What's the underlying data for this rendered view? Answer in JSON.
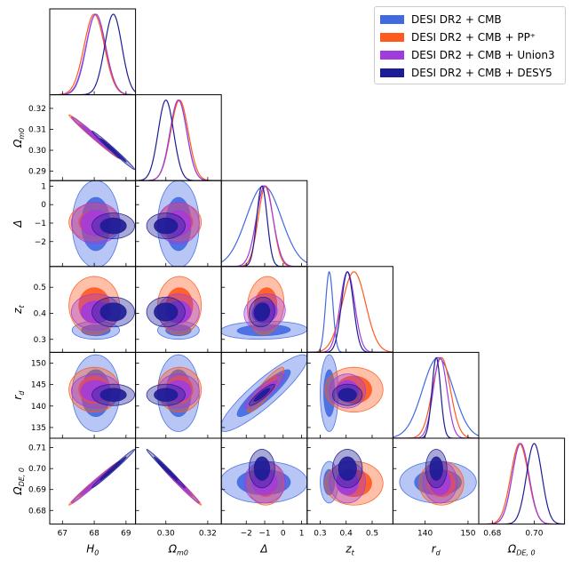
{
  "chart_data": {
    "type": "corner",
    "parameters": [
      {
        "key": "H0",
        "label": "H",
        "sub": "0",
        "range": [
          66.6,
          69.3
        ],
        "ticks": [
          67,
          68,
          69
        ]
      },
      {
        "key": "Om0",
        "label": "Ω",
        "sub": "m0",
        "range": [
          0.2855,
          0.3265
        ],
        "ticks": [
          0.3,
          0.32
        ],
        "row_ticks": [
          0.29,
          0.3,
          0.31,
          0.32
        ]
      },
      {
        "key": "Delta",
        "label": "Δ",
        "sub": "",
        "range": [
          -3.35,
          1.3
        ],
        "ticks": [
          -2,
          -1,
          0,
          1
        ],
        "row_ticks": [
          -2,
          -1,
          0,
          1
        ]
      },
      {
        "key": "zt",
        "label": "z",
        "sub": "t",
        "range": [
          0.25,
          0.58
        ],
        "ticks": [
          0.3,
          0.4,
          0.5
        ],
        "row_ticks": [
          0.3,
          0.4,
          0.5
        ]
      },
      {
        "key": "rd",
        "label": "r",
        "sub": "d",
        "range": [
          132.5,
          152.5
        ],
        "ticks": [
          140,
          150
        ],
        "row_ticks": [
          135,
          140,
          145,
          150
        ]
      },
      {
        "key": "OmDE",
        "label": "Ω",
        "sub": "DE, 0",
        "range": [
          0.6735,
          0.7145
        ],
        "ticks": [
          0.68,
          0.7
        ],
        "row_ticks": [
          0.68,
          0.69,
          0.7,
          0.71
        ]
      }
    ],
    "tick_labels": {
      "H0": [
        "67",
        "68",
        "69"
      ],
      "Om0_x": [
        "0.30",
        "0.32"
      ],
      "Om0_y": [
        "0.29",
        "0.30",
        "0.31",
        "0.32"
      ],
      "Delta": [
        "−2",
        "−1",
        "0",
        "1"
      ],
      "Delta_y": [
        "−2",
        "−1",
        "0",
        "1"
      ],
      "zt_x": [
        "0.3",
        "0.4",
        "0.5"
      ],
      "zt_y": [
        "0.3",
        "0.4",
        "0.5"
      ],
      "rd_x": [
        "140",
        "150"
      ],
      "rd_y": [
        "135",
        "140",
        "145",
        "150"
      ],
      "OmDE_x": [
        "0.68",
        "0.70"
      ],
      "OmDE_y": [
        "0.68",
        "0.69",
        "0.70",
        "0.71"
      ]
    },
    "series": [
      {
        "name": "DESI DR2 + CMB",
        "color": "#4169e1",
        "mean": {
          "H0": 68.05,
          "Om0": 0.306,
          "Delta": -1.05,
          "zt": 0.335,
          "rd": 143.0,
          "OmDE": 0.6935
        },
        "sigma": {
          "H0": 0.3,
          "Om0": 0.004,
          "Delta": 0.95,
          "zt": 0.014,
          "rd": 3.6,
          "OmDE": 0.004
        }
      },
      {
        "name": "DESI DR2 + CMB + PP⁺",
        "color": "#ff5a1e",
        "mean": {
          "H0": 68.0,
          "Om0": 0.3065,
          "Delta": -0.95,
          "zt": 0.43,
          "rd": 143.8,
          "OmDE": 0.693
        },
        "sigma": {
          "H0": 0.32,
          "Om0": 0.0042,
          "Delta": 0.4,
          "zt": 0.045,
          "rd": 2.1,
          "OmDE": 0.0042
        }
      },
      {
        "name": "DESI DR2 + CMB + Union3",
        "color": "#a03cdc",
        "mean": {
          "H0": 68.05,
          "Om0": 0.306,
          "Delta": -1.0,
          "zt": 0.405,
          "rd": 143.5,
          "OmDE": 0.6935
        },
        "sigma": {
          "H0": 0.31,
          "Om0": 0.004,
          "Delta": 0.45,
          "zt": 0.028,
          "rd": 1.6,
          "OmDE": 0.004
        }
      },
      {
        "name": "DESI DR2 + CMB + DESY5",
        "color": "#1c1c96",
        "mean": {
          "H0": 68.6,
          "Om0": 0.3,
          "Delta": -1.15,
          "zt": 0.405,
          "rd": 142.6,
          "OmDE": 0.7
        },
        "sigma": {
          "H0": 0.27,
          "Om0": 0.0037,
          "Delta": 0.28,
          "zt": 0.023,
          "rd": 1.0,
          "OmDE": 0.0037
        }
      }
    ],
    "correlations": {
      "H0-Om0": -0.99,
      "H0-OmDE": 0.99,
      "Om0-OmDE": -0.99,
      "H0-Delta": 0.0,
      "Om0-Delta": 0.0,
      "Delta-OmDE": 0.0,
      "H0-zt": 0.0,
      "Om0-zt": 0.0,
      "zt-OmDE": 0.0,
      "Delta-zt": 0.1,
      "H0-rd": 0.0,
      "Om0-rd": 0.0,
      "rd-OmDE": 0.0,
      "Delta-rd": 0.9,
      "zt-rd": 0.0
    }
  },
  "legend": {
    "items": [
      {
        "label": "DESI DR2 + CMB",
        "color": "#4169e1"
      },
      {
        "label": "DESI DR2 + CMB + PP⁺",
        "color": "#ff5a1e"
      },
      {
        "label": "DESI DR2 + CMB + Union3",
        "color": "#a03cdc"
      },
      {
        "label": "DESI DR2 + CMB + DESY5",
        "color": "#1c1c96"
      }
    ]
  }
}
